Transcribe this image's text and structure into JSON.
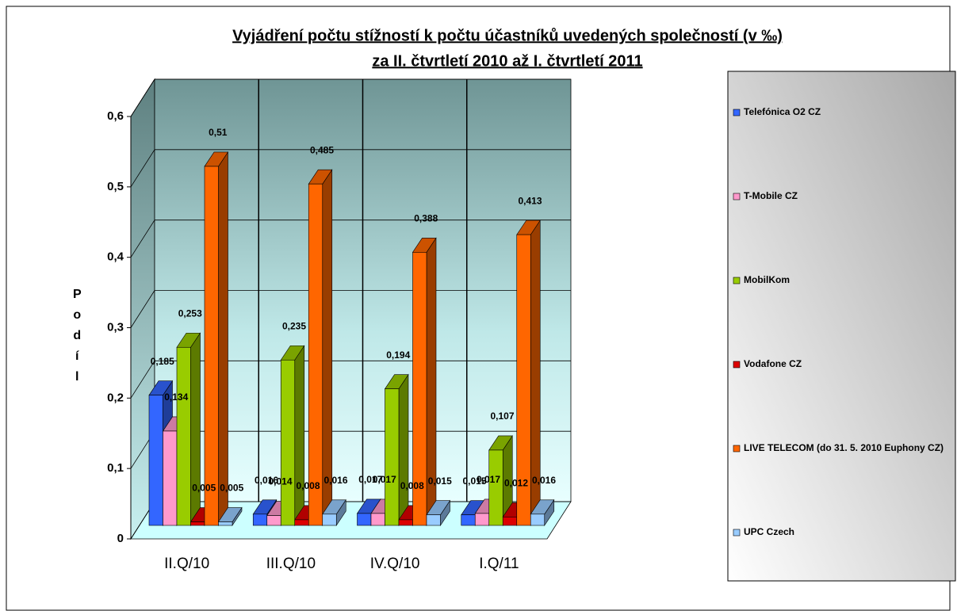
{
  "chart_data": {
    "type": "bar3d",
    "title": "Vyjádření počtu stížností k počtu účastníků uvedených společností (v ‰)",
    "subtitle": "za II. čtvrtletí 2010 až I. čtvrtletí 2011",
    "y_label": "Podíl",
    "categories": [
      "II.Q/10",
      "III.Q/10",
      "IV.Q/10",
      "I.Q/11"
    ],
    "series": [
      {
        "name": "Telefónica O2 CZ",
        "color": "#3366ff",
        "values": [
          0.185,
          0.016,
          0.017,
          0.015
        ],
        "value_labels": [
          "0,185",
          "0,016",
          "0,017",
          "0,015"
        ]
      },
      {
        "name": "T-Mobile CZ",
        "color": "#ff99cc",
        "values": [
          0.134,
          0.014,
          0.017,
          0.017
        ],
        "value_labels": [
          "0,134",
          "0,014",
          "0,017",
          "0,017"
        ]
      },
      {
        "name": "MobilKom",
        "color": "#99cc00",
        "values": [
          0.253,
          0.235,
          0.194,
          0.107
        ],
        "value_labels": [
          "0,253",
          "0,235",
          "0,194",
          "0,107"
        ]
      },
      {
        "name": "Vodafone CZ",
        "color": "#dd0000",
        "values": [
          0.005,
          0.008,
          0.008,
          0.012
        ],
        "value_labels": [
          "0,005",
          "0,008",
          "0,008",
          "0,012"
        ]
      },
      {
        "name": "LIVE TELECOM (do 31. 5. 2010 Euphony CZ)",
        "color": "#ff6600",
        "values": [
          0.51,
          0.485,
          0.388,
          0.413
        ],
        "value_labels": [
          "0,51",
          "0,485",
          "0,388",
          "0,413"
        ]
      },
      {
        "name": "UPC Czech",
        "color": "#99ccff",
        "values": [
          0.005,
          0.016,
          0.015,
          0.016
        ],
        "value_labels": [
          "0,005",
          "0,016",
          "0,015",
          "0,016"
        ]
      }
    ],
    "ylim": [
      0,
      0.6
    ],
    "yticks": [
      0,
      {
        "value": 0.1,
        "label": "0,1"
      },
      {
        "value": 0.2,
        "label": "0,2"
      },
      {
        "value": 0.3,
        "label": "0,3"
      },
      {
        "value": 0.4,
        "label": "0,4"
      },
      {
        "value": 0.5,
        "label": "0,5"
      },
      {
        "value": 0.6,
        "label": "0,6"
      }
    ],
    "grid": true,
    "legend": "right"
  }
}
